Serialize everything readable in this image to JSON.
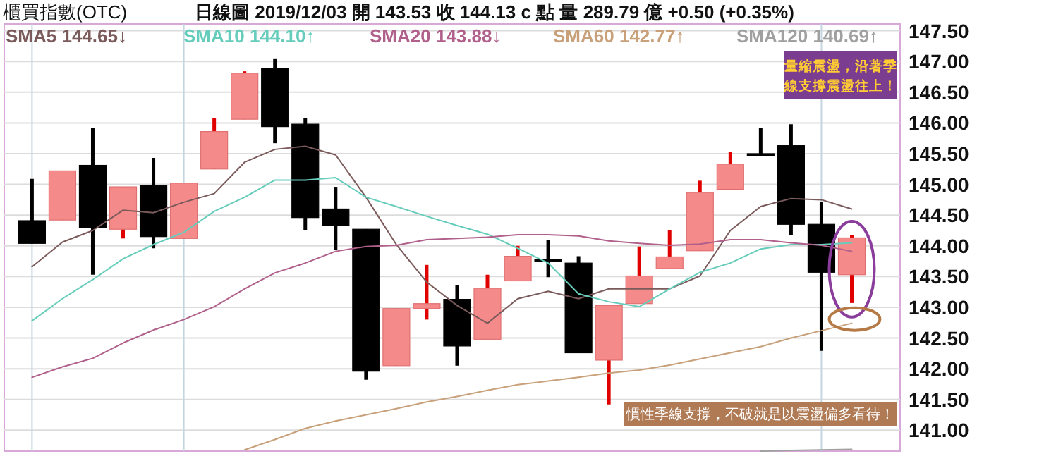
{
  "chart_data": {
    "type": "candlestick",
    "title": "櫃買指數(OTC)",
    "subtitle": "日線圖  2019/12/03  開 143.53  收 144.13 c  點  量 289.79 億  +0.50 (+0.35%)",
    "categories": [
      null,
      null,
      null,
      null,
      null,
      null,
      null,
      null,
      null,
      null,
      null,
      null,
      null,
      null,
      null,
      null,
      null,
      null,
      null,
      null,
      null,
      null,
      null,
      null,
      null,
      null,
      null,
      null
    ],
    "ohlc": [
      [
        144.41,
        145.09,
        144.04,
        144.04
      ],
      [
        144.42,
        145.22,
        144.42,
        145.22
      ],
      [
        145.31,
        145.92,
        143.53,
        144.3
      ],
      [
        144.27,
        144.96,
        144.12,
        144.96
      ],
      [
        144.98,
        145.43,
        143.96,
        144.15
      ],
      [
        144.12,
        145.02,
        144.12,
        145.02
      ],
      [
        145.25,
        146.08,
        145.25,
        145.86
      ],
      [
        146.06,
        146.84,
        146.06,
        146.81
      ],
      [
        146.89,
        147.05,
        145.67,
        145.94
      ],
      [
        145.98,
        146.08,
        144.25,
        144.46
      ],
      [
        144.6,
        144.96,
        143.93,
        144.33
      ],
      [
        144.27,
        144.27,
        141.82,
        141.96
      ],
      [
        142.05,
        142.98,
        142.05,
        142.98
      ],
      [
        142.98,
        143.69,
        142.8,
        143.06
      ],
      [
        143.13,
        143.36,
        142.05,
        142.37
      ],
      [
        142.48,
        143.53,
        142.48,
        143.31
      ],
      [
        143.43,
        144.0,
        143.43,
        143.83
      ],
      [
        143.78,
        144.1,
        143.49,
        143.76
      ],
      [
        143.72,
        143.83,
        142.26,
        142.26
      ],
      [
        142.14,
        143.03,
        141.42,
        143.03
      ],
      [
        143.06,
        143.99,
        143.06,
        143.51
      ],
      [
        143.63,
        144.25,
        143.63,
        143.82
      ],
      [
        143.92,
        145.06,
        143.92,
        144.87
      ],
      [
        144.92,
        145.53,
        144.92,
        145.33
      ],
      [
        145.5,
        145.92,
        145.46,
        145.47
      ],
      [
        145.63,
        145.98,
        144.18,
        144.35
      ],
      [
        144.35,
        144.71,
        142.29,
        143.57
      ],
      [
        143.53,
        144.17,
        143.07,
        144.13
      ]
    ],
    "series": [
      {
        "name": "SMA5 144.65↓",
        "type": "line",
        "color": "#7a5a5a",
        "values": [
          143.66,
          144.06,
          144.25,
          144.58,
          144.54,
          144.71,
          144.85,
          145.36,
          145.57,
          145.62,
          145.48,
          144.79,
          144.02,
          143.41,
          143.03,
          142.74,
          143.14,
          143.26,
          143.14,
          143.3,
          143.3,
          143.3,
          143.51,
          144.25,
          144.64,
          144.77,
          144.75,
          144.6
        ]
      },
      {
        "name": "SMA10 144.10↑",
        "type": "line",
        "color": "#66ccbb",
        "values": [
          142.78,
          143.14,
          143.45,
          143.79,
          144.02,
          144.22,
          144.56,
          144.79,
          145.07,
          145.07,
          145.11,
          144.79,
          144.64,
          144.48,
          144.33,
          144.19,
          143.96,
          143.72,
          143.22,
          143.09,
          143.01,
          143.3,
          143.57,
          143.72,
          143.95,
          144.02,
          144.02,
          144.05
        ]
      },
      {
        "name": "SMA20 143.88↓",
        "type": "line",
        "color": "#b0608a",
        "values": [
          141.86,
          142.03,
          142.17,
          142.42,
          142.63,
          142.8,
          143.01,
          143.3,
          143.56,
          143.72,
          143.91,
          143.99,
          144.01,
          144.1,
          144.12,
          144.14,
          144.18,
          144.18,
          144.16,
          144.08,
          144.04,
          144.01,
          144.03,
          144.1,
          144.1,
          144.05,
          144.01,
          143.91
        ]
      },
      {
        "name": "SMA60 142.77↑",
        "type": "line",
        "color": "#c8a07a",
        "values": [
          null,
          null,
          null,
          null,
          null,
          null,
          null,
          140.68,
          140.85,
          141.03,
          141.15,
          141.25,
          141.35,
          141.46,
          141.55,
          141.65,
          141.74,
          141.8,
          141.86,
          141.93,
          141.98,
          142.06,
          142.16,
          142.26,
          142.36,
          142.5,
          142.62,
          142.74
        ]
      },
      {
        "name": "SMA120 140.69↑",
        "type": "line",
        "color": "#a0a0a0",
        "values": [
          null,
          null,
          null,
          null,
          null,
          null,
          null,
          null,
          null,
          null,
          null,
          null,
          null,
          null,
          null,
          null,
          null,
          null,
          null,
          null,
          null,
          null,
          null,
          null,
          140.66,
          140.67,
          140.68,
          140.69
        ]
      }
    ],
    "ylim": [
      140.66,
      147.61
    ],
    "yticks": [
      {
        "value": 141,
        "label": "141.00"
      },
      {
        "value": 141.5,
        "label": "141.50"
      },
      {
        "value": 142,
        "label": "142.00"
      },
      {
        "value": 142.5,
        "label": "142.50"
      },
      {
        "value": 143,
        "label": "143.00"
      },
      {
        "value": 143.5,
        "label": "143.50"
      },
      {
        "value": 144,
        "label": "144.00"
      },
      {
        "value": 144.5,
        "label": "144.50"
      },
      {
        "value": 145,
        "label": "145.00"
      },
      {
        "value": 145.5,
        "label": "145.50"
      },
      {
        "value": 146,
        "label": "146.00"
      },
      {
        "value": 146.5,
        "label": "146.50"
      },
      {
        "value": 147,
        "label": "147.00"
      },
      {
        "value": 147.5,
        "label": "147.50"
      }
    ],
    "grid": true,
    "legend": "top left",
    "annotations": [
      "量縮震盪，沿著季線支撐震盪往上！",
      "慣性季線支撐，不破就是以震盪偏多看待！"
    ]
  }
}
